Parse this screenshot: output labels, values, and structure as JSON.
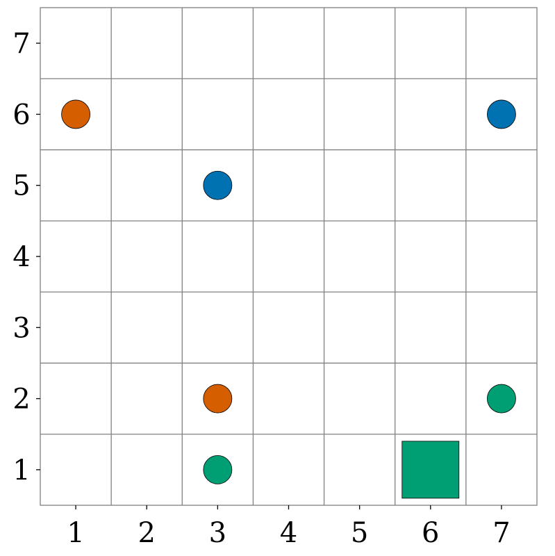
{
  "board": {
    "cols": 7,
    "rows": 7,
    "x_ticks": [
      "1",
      "2",
      "3",
      "4",
      "5",
      "6",
      "7"
    ],
    "y_ticks": [
      "1",
      "2",
      "3",
      "4",
      "5",
      "6",
      "7"
    ]
  },
  "colors": {
    "orange": "#d55e00",
    "blue": "#0072b2",
    "green": "#009e73",
    "grid": "#808080",
    "background": "#ffffff"
  },
  "pieces": [
    {
      "shape": "circle",
      "color": "orange",
      "x": 1,
      "y": 6
    },
    {
      "shape": "circle",
      "color": "blue",
      "x": 7,
      "y": 6
    },
    {
      "shape": "circle",
      "color": "blue",
      "x": 3,
      "y": 5
    },
    {
      "shape": "circle",
      "color": "orange",
      "x": 3,
      "y": 2
    },
    {
      "shape": "circle",
      "color": "green",
      "x": 7,
      "y": 2
    },
    {
      "shape": "circle",
      "color": "green",
      "x": 3,
      "y": 1
    },
    {
      "shape": "square",
      "color": "green",
      "x": 6,
      "y": 1
    }
  ]
}
